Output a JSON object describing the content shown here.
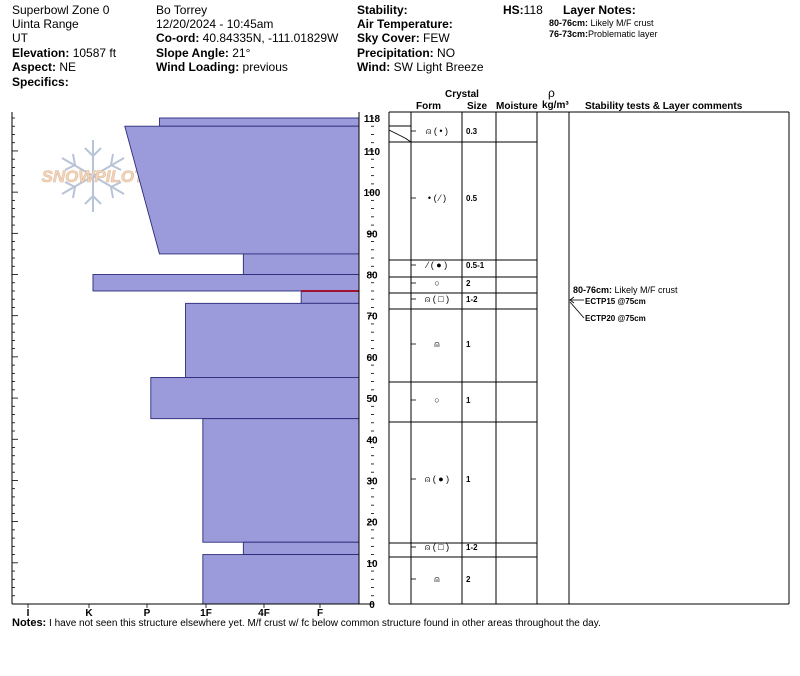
{
  "header": {
    "location": "Superbowl Zone 0",
    "range": "Uinta Range",
    "state": "UT",
    "elevation_label": "Elevation:",
    "elevation_value": "10587 ft",
    "aspect_label": "Aspect:",
    "aspect_value": "NE",
    "specifics_label": "Specifics:",
    "observer": "Bo Torrey",
    "datetime": "12/20/2024 - 10:45am",
    "coord_label": "Co-ord:",
    "coord_value": "40.84335N, -111.01829W",
    "slope_label": "Slope Angle:",
    "slope_value": "21°",
    "wind_loading_label": "Wind Loading:",
    "wind_loading_value": "previous",
    "stability_label": "Stability:",
    "air_temp_label": "Air Temperature:",
    "sky_cover_label": "Sky Cover:",
    "sky_cover_value": "FEW",
    "precip_label": "Precipitation:",
    "precip_value": "NO",
    "wind_label": "Wind:",
    "wind_value": "SW Light Breeze",
    "hs_label": "HS:",
    "hs_value": "118",
    "layer_notes_label": "Layer Notes:",
    "layer_notes": [
      {
        "range": "80-76cm:",
        "text": "Likely M/F crust"
      },
      {
        "range": "76-73cm:",
        "text": "Problematic layer"
      }
    ]
  },
  "logo_text": "SNOWPILOT",
  "columns": {
    "crystal": "Crystal",
    "form": "Form",
    "size": "Size",
    "moisture": "Moisture",
    "rho": "ρ",
    "density_unit": "kg/m³",
    "stability": "Stability tests & Layer comments"
  },
  "chart_data": {
    "type": "bar",
    "title": "",
    "orientation": "horizontal",
    "xlabel": "",
    "ylabel": "",
    "hardness_ticks": [
      "I",
      "K",
      "P",
      "1F",
      "4F",
      "F"
    ],
    "height_ticks": [
      0,
      10,
      20,
      30,
      40,
      50,
      60,
      70,
      80,
      90,
      100,
      110,
      118
    ],
    "ylim": [
      0,
      118
    ],
    "layers": [
      {
        "top": 118,
        "bottom": 116,
        "hardness": 3.45
      },
      {
        "top": 116,
        "bottom": 85,
        "hardness_top": 4.05,
        "hardness_bottom": 3.45
      },
      {
        "top": 85,
        "bottom": 80,
        "hardness": 2.0
      },
      {
        "top": 80,
        "bottom": 76,
        "hardness": 4.6
      },
      {
        "top": 76,
        "bottom": 73,
        "hardness": 1.0
      },
      {
        "top": 73,
        "bottom": 55,
        "hardness": 3.0
      },
      {
        "top": 55,
        "bottom": 45,
        "hardness": 3.6
      },
      {
        "top": 45,
        "bottom": 15,
        "hardness": 2.7
      },
      {
        "top": 15,
        "bottom": 12,
        "hardness": 2.0
      },
      {
        "top": 12,
        "bottom": 0,
        "hardness": 2.7
      }
    ],
    "problem_layer_height": 76,
    "boundaries": [
      118,
      116,
      85,
      80,
      76,
      73,
      55,
      45,
      15,
      12,
      0
    ],
    "crystals": [
      {
        "center": 117,
        "form": "⍝ ( • )",
        "size": "0.3"
      },
      {
        "center": 100.5,
        "form": "• ( ⁄ )",
        "size": "0.5"
      },
      {
        "center": 82.5,
        "form": "⁄ ( ● )",
        "size": "0.5-1"
      },
      {
        "center": 78,
        "form": "○",
        "size": "2"
      },
      {
        "center": 74.5,
        "form": "⍝ ( □ )",
        "size": "1-2"
      },
      {
        "center": 64,
        "form": "⍝",
        "size": "1"
      },
      {
        "center": 50,
        "form": "○",
        "size": "1"
      },
      {
        "center": 30,
        "form": "⍝ ( ● )",
        "size": "1"
      },
      {
        "center": 13.5,
        "form": "⍝ ( □ )",
        "size": "1-2"
      },
      {
        "center": 6,
        "form": "⍝",
        "size": "2"
      }
    ],
    "comments": [
      {
        "range": "80-76cm:",
        "text": "Likely M/F crust"
      },
      {
        "text": "ECTP15 @75cm"
      },
      {
        "text": "ECTP20 @75cm"
      }
    ]
  },
  "notes_label": "Notes:",
  "notes_text": "I have not seen this structure elsewhere yet. M/f crust w/ fc below common structure found in other areas throughout the day."
}
